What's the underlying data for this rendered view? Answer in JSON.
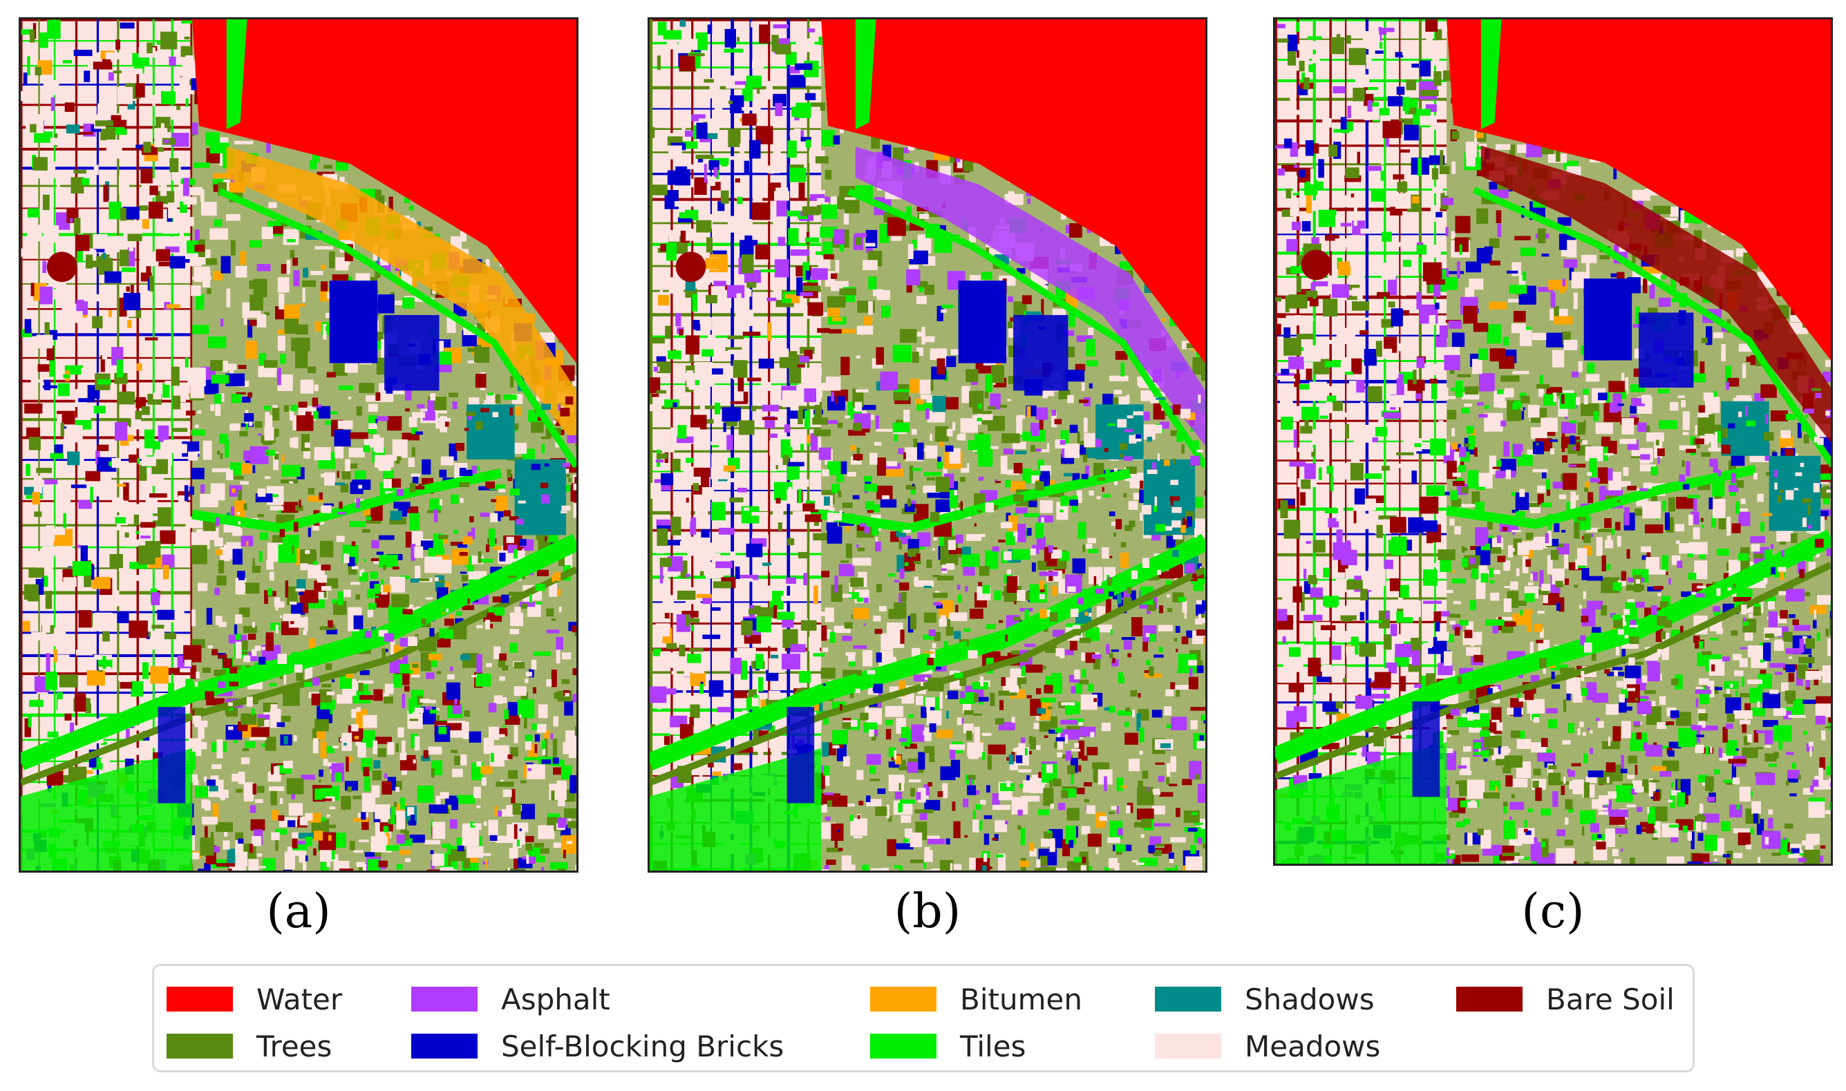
{
  "captions": {
    "a": "(a)",
    "b": "(b)",
    "c": "(c)"
  },
  "legend": {
    "items": [
      {
        "label": "Water",
        "color": "#ff0000"
      },
      {
        "label": "Trees",
        "color": "#5a8a10"
      },
      {
        "label": "Asphalt",
        "color": "#b03cff"
      },
      {
        "label": "Self-Blocking Bricks",
        "color": "#0000cc"
      },
      {
        "label": "Bitumen",
        "color": "#ffa500"
      },
      {
        "label": "Tiles",
        "color": "#00ee00"
      },
      {
        "label": "Shadows",
        "color": "#008b8b"
      },
      {
        "label": "Meadows",
        "color": "#fde4e1"
      },
      {
        "label": "Bare Soil",
        "color": "#990000"
      }
    ]
  }
}
